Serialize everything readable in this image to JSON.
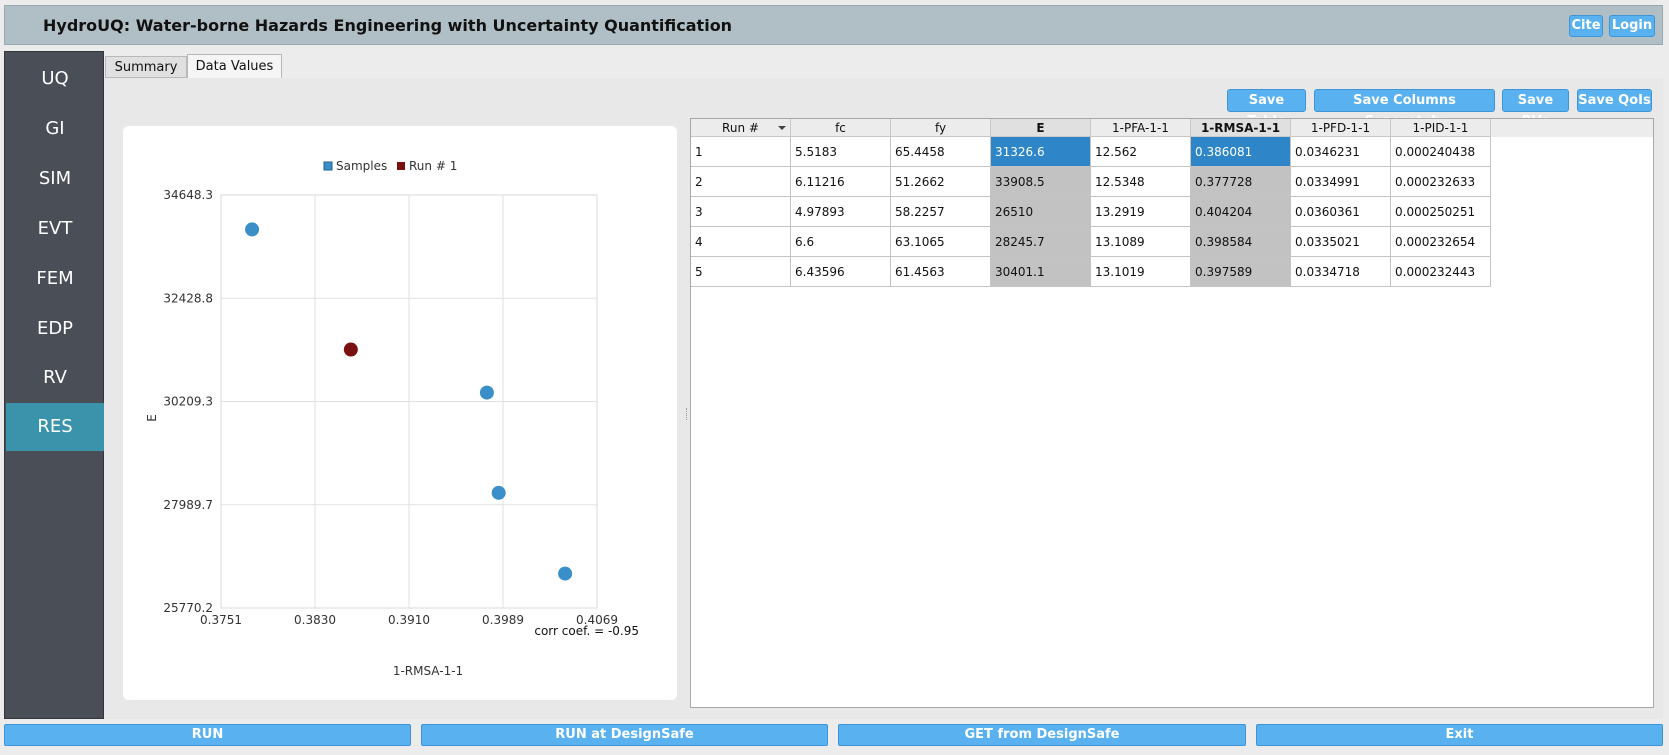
{
  "header": {
    "title": "HydroUQ: Water-borne Hazards Engineering with Uncertainty Quantification",
    "cite_label": "Cite",
    "login_label": "Login"
  },
  "sidebar": {
    "items": [
      "UQ",
      "GI",
      "SIM",
      "EVT",
      "FEM",
      "EDP",
      "RV",
      "RES"
    ],
    "active": "RES"
  },
  "tabs": {
    "summary": "Summary",
    "data_values": "Data Values",
    "active": "Data Values"
  },
  "save_buttons": {
    "table": "Save Table",
    "columns": "Save Columns Separately",
    "rvs": "Save RVs",
    "qois": "Save QoIs"
  },
  "chart_data": {
    "type": "scatter",
    "title": "",
    "xlabel": "1-RMSA-1-1",
    "ylabel": "E",
    "xlim": [
      0.3751,
      0.4069
    ],
    "ylim": [
      25770.2,
      34648.3
    ],
    "x_ticks": [
      "0.3751",
      "0.3830",
      "0.3910",
      "0.3989",
      "0.4069"
    ],
    "y_ticks": [
      "25770.2",
      "27989.7",
      "30209.3",
      "32428.8",
      "34648.3"
    ],
    "legend": [
      {
        "name": "Samples",
        "color": "#3a8fc8"
      },
      {
        "name": "Run # 1",
        "color": "#7a1010"
      }
    ],
    "series": [
      {
        "name": "Samples",
        "color": "#3a8fc8",
        "x": [
          0.377728,
          0.404204,
          0.398584,
          0.397589
        ],
        "y": [
          33908.5,
          26510,
          28245.7,
          30401.1
        ]
      },
      {
        "name": "Run # 1",
        "color": "#7a1010",
        "x": [
          0.386081
        ],
        "y": [
          31326.6
        ]
      }
    ],
    "annotation": "corr coef. = -0.95",
    "grid": true
  },
  "table": {
    "columns": [
      "Run #",
      "fc",
      "fy",
      "E",
      "1-PFA-1-1",
      "1-RMSA-1-1",
      "1-PFD-1-1",
      "1-PID-1-1"
    ],
    "rows": [
      [
        "1",
        "5.5183",
        "65.4458",
        "31326.6",
        "12.562",
        "0.386081",
        "0.0346231",
        "0.000240438"
      ],
      [
        "2",
        "6.11216",
        "51.2662",
        "33908.5",
        "12.5348",
        "0.377728",
        "0.0334991",
        "0.000232633"
      ],
      [
        "3",
        "4.97893",
        "58.2257",
        "26510",
        "13.2919",
        "0.404204",
        "0.0360361",
        "0.000250251"
      ],
      [
        "4",
        "6.6",
        "63.1065",
        "28245.7",
        "13.1089",
        "0.398584",
        "0.0335021",
        "0.000232654"
      ],
      [
        "5",
        "6.43596",
        "61.4563",
        "30401.1",
        "13.1019",
        "0.397589",
        "0.0334718",
        "0.000232443"
      ]
    ],
    "selected_row": 1
  },
  "bottom_buttons": {
    "run": "RUN",
    "run_designsafe": "RUN at DesignSafe",
    "get_designsafe": "GET from DesignSafe",
    "exit": "Exit"
  }
}
